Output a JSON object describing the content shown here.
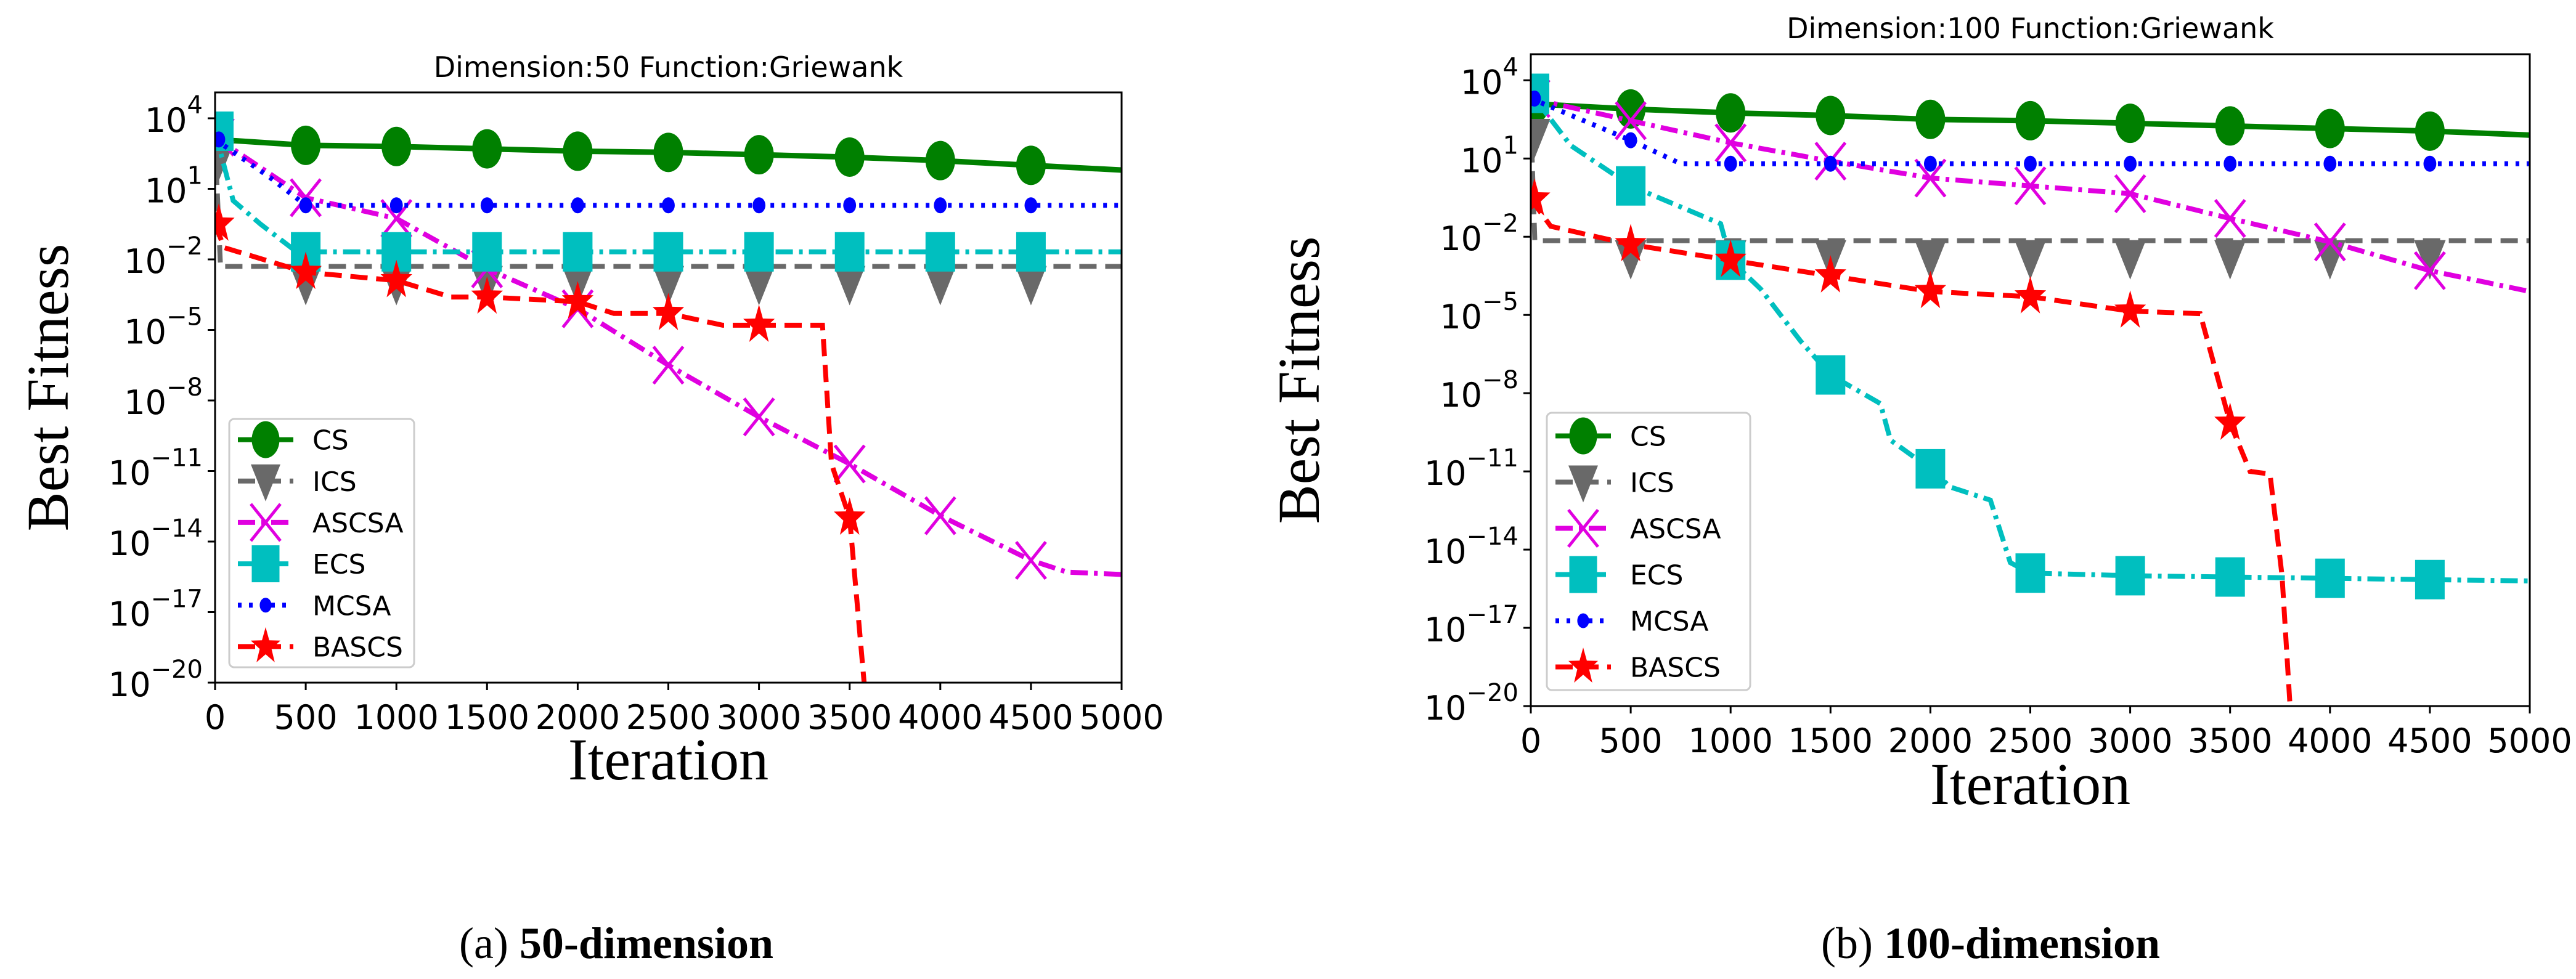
{
  "colors": {
    "CS": "#008000",
    "ICS": "#696969",
    "ASCSA": "#e000e0",
    "ECS": "#00bfbf",
    "MCSA": "#0000ff",
    "BASCS": "#ff0000"
  },
  "captions": [
    {
      "label": "(a)",
      "text": "50-dimension"
    },
    {
      "label": "(b)",
      "text": "100-dimension"
    }
  ],
  "chart_data": [
    {
      "type": "line",
      "title": "Dimension:50  Function:Griewank",
      "xlabel": "Iteration",
      "ylabel": "Best Fitness",
      "yscale": "log",
      "xlim": [
        0,
        5000
      ],
      "ylim_log10": [
        -20,
        5.1
      ],
      "xticks": [
        "0",
        "500",
        "1000",
        "1500",
        "2000",
        "2500",
        "3000",
        "3500",
        "4000",
        "4500",
        "5000"
      ],
      "yticks": [
        {
          "base": "10",
          "exp": "4"
        },
        {
          "base": "10",
          "exp": "1"
        },
        {
          "base": "10",
          "exp": "−2"
        },
        {
          "base": "10",
          "exp": "−5"
        },
        {
          "base": "10",
          "exp": "−8"
        },
        {
          "base": "10",
          "exp": "−11"
        },
        {
          "base": "10",
          "exp": "−14"
        },
        {
          "base": "10",
          "exp": "−17"
        },
        {
          "base": "10",
          "exp": "−20"
        }
      ],
      "legend_position": "lower-left",
      "series": [
        {
          "name": "CS",
          "marker": "circle",
          "dash": "solid",
          "log10_values": [
            [
              0,
              3.1
            ],
            [
              500,
              2.85
            ],
            [
              1000,
              2.8
            ],
            [
              1500,
              2.7
            ],
            [
              2000,
              2.6
            ],
            [
              2500,
              2.55
            ],
            [
              3000,
              2.45
            ],
            [
              3500,
              2.35
            ],
            [
              4000,
              2.2
            ],
            [
              4500,
              2.0
            ],
            [
              5000,
              1.8
            ]
          ]
        },
        {
          "name": "ICS",
          "marker": "triangle-down",
          "dash": "dashed",
          "log10_values": [
            [
              0,
              3.0
            ],
            [
              30,
              -2.3
            ],
            [
              5000,
              -2.3
            ]
          ]
        },
        {
          "name": "ASCSA",
          "marker": "x",
          "dash": "dashdot",
          "log10_values": [
            [
              0,
              3.2
            ],
            [
              500,
              0.62
            ],
            [
              1000,
              -0.26
            ],
            [
              1500,
              -2.4
            ],
            [
              2000,
              -4.1
            ],
            [
              2500,
              -6.5
            ],
            [
              3000,
              -8.7
            ],
            [
              3500,
              -10.7
            ],
            [
              4000,
              -12.9
            ],
            [
              4500,
              -14.8
            ],
            [
              4700,
              -15.3
            ],
            [
              5000,
              -15.4
            ]
          ]
        },
        {
          "name": "ECS",
          "marker": "square",
          "dash": "dashdot",
          "log10_values": [
            [
              0,
              3.45
            ],
            [
              100,
              0.5
            ],
            [
              250,
              -0.5
            ],
            [
              450,
              -1.68
            ],
            [
              5000,
              -1.68
            ]
          ]
        },
        {
          "name": "MCSA",
          "marker": "dot",
          "dash": "dotted",
          "log10_values": [
            [
              0,
              3.1
            ],
            [
              300,
              1.5
            ],
            [
              500,
              0.3
            ],
            [
              5000,
              0.3
            ]
          ]
        },
        {
          "name": "BASCS",
          "marker": "star",
          "dash": "dashed",
          "log10_values": [
            [
              0,
              -0.5
            ],
            [
              50,
              -1.5
            ],
            [
              500,
              -2.55
            ],
            [
              1000,
              -2.9
            ],
            [
              1300,
              -3.6
            ],
            [
              1500,
              -3.6
            ],
            [
              2000,
              -3.8
            ],
            [
              2200,
              -4.3
            ],
            [
              2500,
              -4.3
            ],
            [
              2800,
              -4.8
            ],
            [
              3350,
              -4.8
            ],
            [
              3400,
              -10.7
            ],
            [
              3500,
              -13
            ],
            [
              3580,
              -20
            ]
          ]
        }
      ]
    },
    {
      "type": "line",
      "title": "Dimension:100  Function:Griewank",
      "xlabel": "Iteration",
      "ylabel": "Best Fitness",
      "yscale": "log",
      "xlim": [
        0,
        5000
      ],
      "ylim_log10": [
        -20,
        5.0
      ],
      "xticks": [
        "0",
        "500",
        "1000",
        "1500",
        "2000",
        "2500",
        "3000",
        "3500",
        "4000",
        "4500",
        "5000"
      ],
      "yticks": [
        {
          "base": "10",
          "exp": "4"
        },
        {
          "base": "10",
          "exp": "1"
        },
        {
          "base": "10",
          "exp": "−2"
        },
        {
          "base": "10",
          "exp": "−5"
        },
        {
          "base": "10",
          "exp": "−8"
        },
        {
          "base": "10",
          "exp": "−11"
        },
        {
          "base": "10",
          "exp": "−14"
        },
        {
          "base": "10",
          "exp": "−17"
        },
        {
          "base": "10",
          "exp": "−20"
        }
      ],
      "legend_position": "lower-left",
      "series": [
        {
          "name": "CS",
          "marker": "circle",
          "dash": "solid",
          "log10_values": [
            [
              0,
              3.1
            ],
            [
              500,
              2.9
            ],
            [
              1000,
              2.75
            ],
            [
              1500,
              2.65
            ],
            [
              2000,
              2.5
            ],
            [
              2500,
              2.45
            ],
            [
              3000,
              2.35
            ],
            [
              3500,
              2.25
            ],
            [
              4000,
              2.15
            ],
            [
              4500,
              2.05
            ],
            [
              5000,
              1.9
            ]
          ]
        },
        {
          "name": "ICS",
          "marker": "triangle-down",
          "dash": "dashed",
          "log10_values": [
            [
              0,
              2.5
            ],
            [
              20,
              -2.15
            ],
            [
              5000,
              -2.15
            ]
          ]
        },
        {
          "name": "ASCSA",
          "marker": "x",
          "dash": "dashdot",
          "log10_values": [
            [
              0,
              3.3
            ],
            [
              500,
              2.45
            ],
            [
              1000,
              1.6
            ],
            [
              1500,
              0.9
            ],
            [
              2000,
              0.25
            ],
            [
              2500,
              -0.05
            ],
            [
              3000,
              -0.35
            ],
            [
              3500,
              -1.3
            ],
            [
              4000,
              -2.2
            ],
            [
              4500,
              -3.3
            ],
            [
              5000,
              -4.1
            ]
          ]
        },
        {
          "name": "ECS",
          "marker": "square",
          "dash": "dashdot",
          "log10_values": [
            [
              0,
              3.5
            ],
            [
              200,
              1.5
            ],
            [
              500,
              -0.05
            ],
            [
              950,
              -1.5
            ],
            [
              1000,
              -2.9
            ],
            [
              1150,
              -4.0
            ],
            [
              1350,
              -6.0
            ],
            [
              1500,
              -7.3
            ],
            [
              1750,
              -8.4
            ],
            [
              1800,
              -9.8
            ],
            [
              2000,
              -10.9
            ],
            [
              2100,
              -11.6
            ],
            [
              2300,
              -12.1
            ],
            [
              2400,
              -14.5
            ],
            [
              2500,
              -14.9
            ],
            [
              3000,
              -15.0
            ],
            [
              5000,
              -15.2
            ]
          ]
        },
        {
          "name": "MCSA",
          "marker": "dot",
          "dash": "dotted",
          "log10_values": [
            [
              0,
              3.3
            ],
            [
              500,
              1.7
            ],
            [
              750,
              0.8
            ],
            [
              5000,
              0.8
            ]
          ]
        },
        {
          "name": "BASCS",
          "marker": "star",
          "dash": "dashed",
          "log10_values": [
            [
              0,
              -0.55
            ],
            [
              100,
              -1.6
            ],
            [
              500,
              -2.3
            ],
            [
              1000,
              -2.9
            ],
            [
              1500,
              -3.5
            ],
            [
              2000,
              -4.1
            ],
            [
              2500,
              -4.3
            ],
            [
              3000,
              -4.85
            ],
            [
              3350,
              -4.95
            ],
            [
              3500,
              -9.15
            ],
            [
              3600,
              -11.0
            ],
            [
              3700,
              -11.1
            ],
            [
              3760,
              -15
            ],
            [
              3800,
              -20
            ]
          ]
        }
      ]
    }
  ]
}
